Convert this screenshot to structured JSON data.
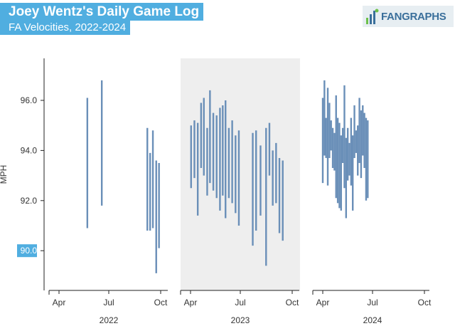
{
  "title": "Joey Wentz's Daily Game Log",
  "subtitle": "FA Velocities, 2022-2024",
  "logo_text": "FANGRAPHS",
  "colors": {
    "bar": "#6a8fb8",
    "title_bg": "#50aee0",
    "panel_shade": "#eeeeee",
    "highlight_tick_bg": "#50aee0"
  },
  "chart_data": {
    "type": "range",
    "ylabel": "MPH",
    "ylim": [
      88.2,
      97.8
    ],
    "yticks": [
      90.0,
      92.0,
      94.0,
      96.0
    ],
    "highlighted_ytick": 90.0,
    "grid": false,
    "x_tick_labels": [
      "Apr",
      "Jul",
      "Oct"
    ],
    "panels": [
      {
        "year": "2022",
        "shaded": false,
        "games": [
          {
            "date": "2022-05-22",
            "min": 90.9,
            "max": 96.1
          },
          {
            "date": "2022-06-17",
            "min": 91.8,
            "max": 96.8
          },
          {
            "date": "2022-09-07",
            "min": 90.8,
            "max": 94.9
          },
          {
            "date": "2022-09-12",
            "min": 90.8,
            "max": 93.9
          },
          {
            "date": "2022-09-17",
            "min": 90.9,
            "max": 94.8
          },
          {
            "date": "2022-09-23",
            "min": 89.1,
            "max": 93.6
          },
          {
            "date": "2022-09-28",
            "min": 90.1,
            "max": 93.5
          }
        ]
      },
      {
        "year": "2023",
        "shaded": true,
        "games": [
          {
            "date": "2023-04-02",
            "min": 92.5,
            "max": 95.0
          },
          {
            "date": "2023-04-08",
            "min": 92.9,
            "max": 95.2
          },
          {
            "date": "2023-04-14",
            "min": 91.4,
            "max": 95.1
          },
          {
            "date": "2023-04-20",
            "min": 93.3,
            "max": 95.9
          },
          {
            "date": "2023-04-25",
            "min": 93.0,
            "max": 96.1
          },
          {
            "date": "2023-05-01",
            "min": 92.2,
            "max": 94.9
          },
          {
            "date": "2023-05-06",
            "min": 92.7,
            "max": 96.4
          },
          {
            "date": "2023-05-12",
            "min": 92.4,
            "max": 95.5
          },
          {
            "date": "2023-05-18",
            "min": 92.1,
            "max": 95.4
          },
          {
            "date": "2023-05-24",
            "min": 91.6,
            "max": 95.7
          },
          {
            "date": "2023-05-29",
            "min": 92.2,
            "max": 95.8
          },
          {
            "date": "2023-06-03",
            "min": 91.3,
            "max": 96.0
          },
          {
            "date": "2023-06-09",
            "min": 92.1,
            "max": 94.9
          },
          {
            "date": "2023-06-15",
            "min": 91.9,
            "max": 95.2
          },
          {
            "date": "2023-06-21",
            "min": 91.5,
            "max": 94.6
          },
          {
            "date": "2023-06-27",
            "min": 91.0,
            "max": 94.8
          },
          {
            "date": "2023-07-22",
            "min": 90.2,
            "max": 94.7
          },
          {
            "date": "2023-07-28",
            "min": 90.8,
            "max": 94.8
          },
          {
            "date": "2023-08-05",
            "min": 91.4,
            "max": 94.2
          },
          {
            "date": "2023-08-15",
            "min": 89.4,
            "max": 94.9
          },
          {
            "date": "2023-08-21",
            "min": 93.0,
            "max": 95.1
          },
          {
            "date": "2023-08-27",
            "min": 91.8,
            "max": 94.0
          },
          {
            "date": "2023-09-02",
            "min": 91.9,
            "max": 94.3
          },
          {
            "date": "2023-09-08",
            "min": 90.7,
            "max": 93.7
          },
          {
            "date": "2023-09-14",
            "min": 90.4,
            "max": 93.6
          }
        ]
      },
      {
        "year": "2024",
        "shaded": false,
        "games": [
          {
            "date": "2024-03-31",
            "min": 92.7,
            "max": 96.1
          },
          {
            "date": "2024-04-03",
            "min": 93.8,
            "max": 96.8
          },
          {
            "date": "2024-04-06",
            "min": 93.7,
            "max": 95.3
          },
          {
            "date": "2024-04-09",
            "min": 92.6,
            "max": 96.5
          },
          {
            "date": "2024-04-12",
            "min": 93.7,
            "max": 95.9
          },
          {
            "date": "2024-04-15",
            "min": 94.0,
            "max": 95.2
          },
          {
            "date": "2024-04-18",
            "min": 93.3,
            "max": 94.9
          },
          {
            "date": "2024-04-21",
            "min": 93.2,
            "max": 94.7
          },
          {
            "date": "2024-04-24",
            "min": 92.1,
            "max": 96.2
          },
          {
            "date": "2024-04-27",
            "min": 91.9,
            "max": 95.3
          },
          {
            "date": "2024-04-30",
            "min": 91.7,
            "max": 95.1
          },
          {
            "date": "2024-05-03",
            "min": 91.6,
            "max": 94.6
          },
          {
            "date": "2024-05-06",
            "min": 93.5,
            "max": 94.9
          },
          {
            "date": "2024-05-09",
            "min": 92.5,
            "max": 96.6
          },
          {
            "date": "2024-05-12",
            "min": 91.3,
            "max": 94.5
          },
          {
            "date": "2024-05-15",
            "min": 92.8,
            "max": 94.9
          },
          {
            "date": "2024-05-18",
            "min": 93.0,
            "max": 94.3
          },
          {
            "date": "2024-05-21",
            "min": 92.6,
            "max": 95.3
          },
          {
            "date": "2024-05-24",
            "min": 91.6,
            "max": 94.6
          },
          {
            "date": "2024-05-27",
            "min": 93.7,
            "max": 95.8
          },
          {
            "date": "2024-05-30",
            "min": 93.9,
            "max": 94.8
          },
          {
            "date": "2024-06-02",
            "min": 93.0,
            "max": 95.0
          },
          {
            "date": "2024-06-05",
            "min": 93.5,
            "max": 96.1
          },
          {
            "date": "2024-06-08",
            "min": 92.9,
            "max": 95.6
          },
          {
            "date": "2024-06-11",
            "min": 93.8,
            "max": 95.8
          },
          {
            "date": "2024-06-14",
            "min": 93.3,
            "max": 95.5
          },
          {
            "date": "2024-06-17",
            "min": 92.0,
            "max": 95.3
          },
          {
            "date": "2024-06-20",
            "min": 92.1,
            "max": 95.2
          }
        ]
      }
    ]
  }
}
